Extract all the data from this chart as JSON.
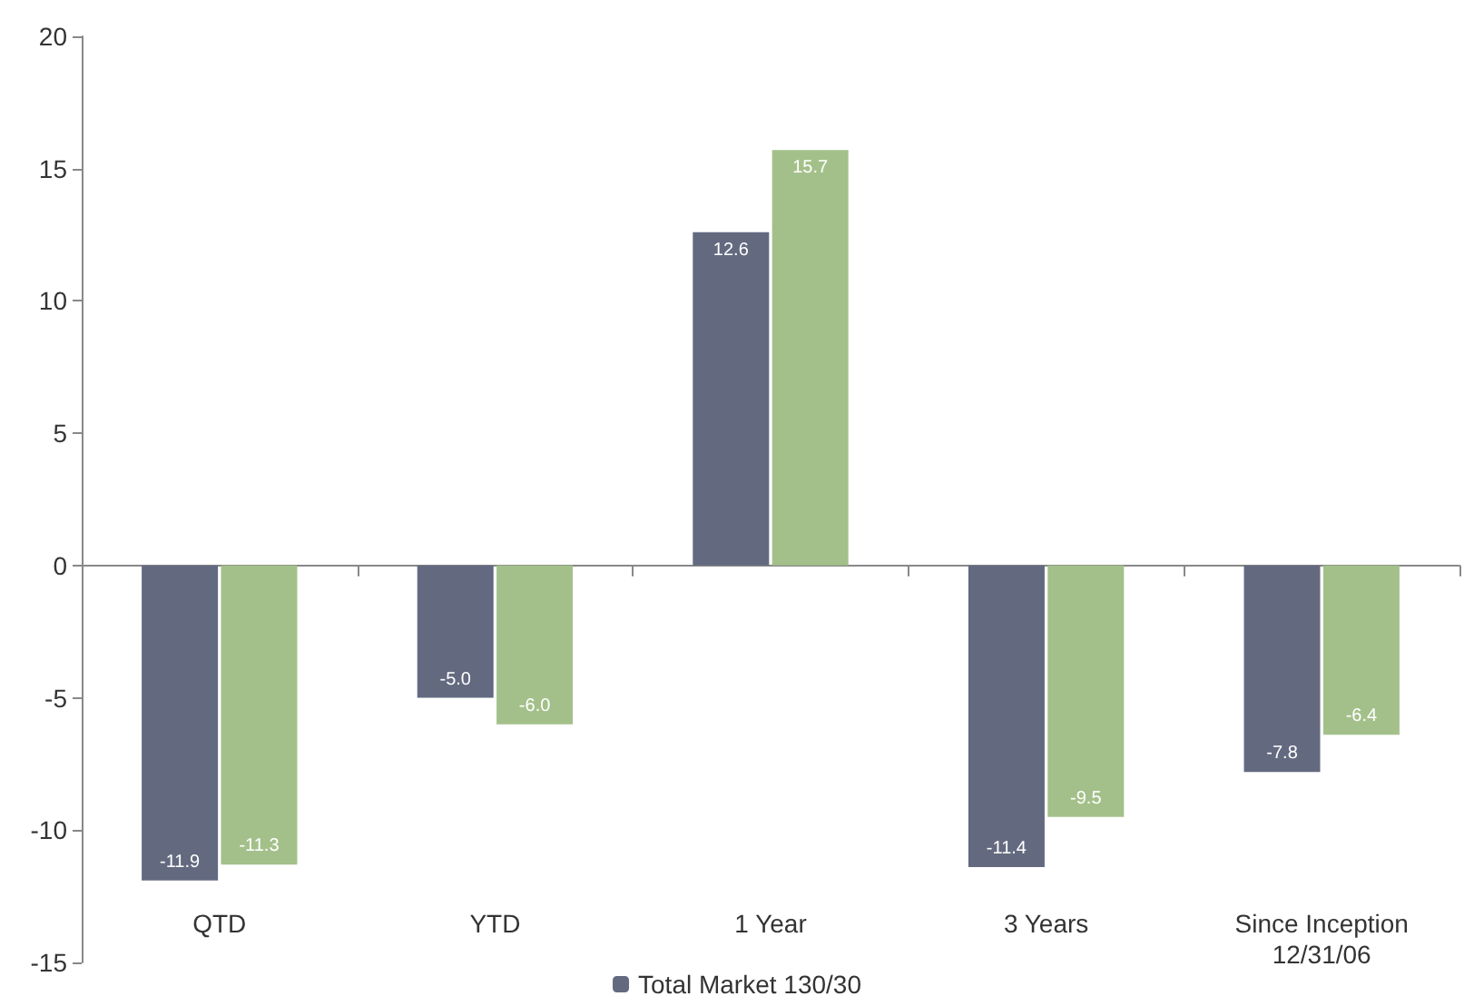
{
  "chart_data": {
    "type": "bar",
    "categories": [
      "QTD",
      "YTD",
      "1 Year",
      "3 Years",
      "Since Inception\n12/31/06"
    ],
    "series": [
      {
        "name": "Total Market 130/30",
        "color": "#636a80",
        "values": [
          -11.9,
          -5.0,
          12.6,
          -11.4,
          -7.8
        ],
        "value_labels": [
          "-11.9",
          "-5.0",
          "12.6",
          "-11.4",
          "-7.8"
        ]
      },
      {
        "color": "#a3c08a",
        "values": [
          -11.3,
          -6.0,
          15.7,
          -9.5,
          -6.4
        ],
        "value_labels": [
          "-11.3",
          "-6.0",
          "15.7",
          "-9.5",
          "-6.4"
        ]
      }
    ],
    "ylim": [
      -15,
      20
    ],
    "yticks": [
      -15,
      -10,
      -5,
      0,
      5,
      10,
      15,
      20
    ],
    "legend": "bottom"
  }
}
